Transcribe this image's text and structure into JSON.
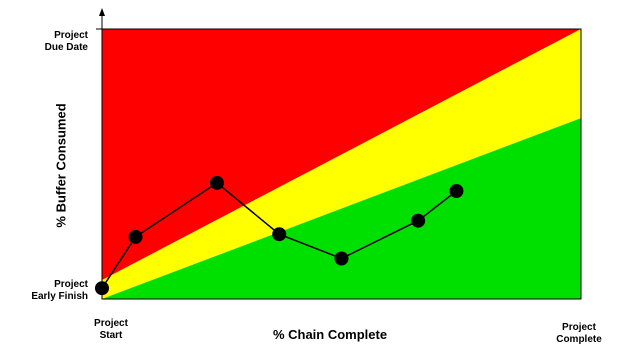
{
  "chart_data": {
    "type": "line",
    "title": "",
    "xlabel": "% Chain Complete",
    "ylabel": "% Buffer Consumed",
    "x_tick_labels": [
      {
        "line1": "Project",
        "line2": "Start",
        "x": 0
      },
      {
        "line1": "Project",
        "line2": "Complete",
        "x": 100
      }
    ],
    "y_tick_labels": [
      {
        "line1": "Project",
        "line2": "Early Finish",
        "y": 0
      },
      {
        "line1": "Project",
        "line2": "Due Date",
        "y": 100
      }
    ],
    "xlim": [
      0,
      100
    ],
    "ylim": [
      0,
      100
    ],
    "grid": false,
    "legend": "none",
    "zones": [
      {
        "name": "red",
        "color": "#ff0000"
      },
      {
        "name": "yellow",
        "color": "#ffff00"
      },
      {
        "name": "green",
        "color": "#00e000"
      }
    ],
    "zone_boundaries": {
      "red_yellow": {
        "start_y": 7,
        "end_y": 100
      },
      "yellow_green": {
        "start_y": 0,
        "end_y": 67
      }
    },
    "series": [
      {
        "marker": "circle",
        "color": "#000000",
        "x": [
          0,
          7,
          24,
          37,
          50,
          66,
          74
        ],
        "y": [
          4,
          23,
          43,
          24,
          15,
          29,
          40
        ]
      }
    ]
  }
}
